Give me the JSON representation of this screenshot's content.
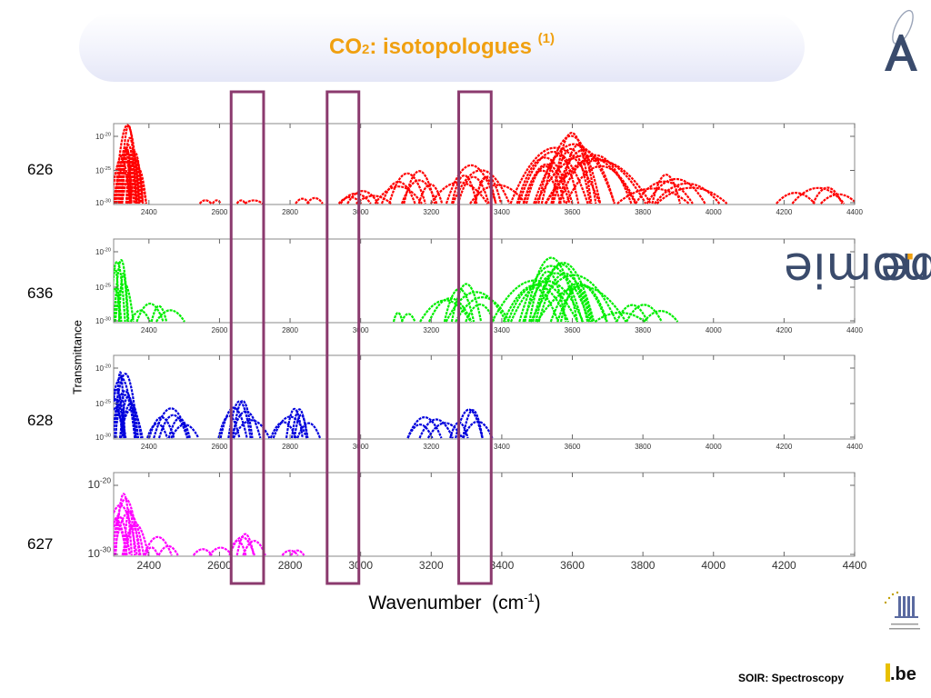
{
  "slide": {
    "title_main": "CO",
    "title_sub": "2",
    "title_rest": ": isotopologues ",
    "title_sup": "(1)",
    "footer": "SOIR: Spectroscopy",
    "brand_word": "aeronomie",
    "brand_dot": ".",
    "brand_tld": "be",
    "be_logo_text": ".be",
    "fed_logo_icon": "federal-science-policy-icon",
    "colors": {
      "title": "#f0a010",
      "title_box": "#e5e7f7",
      "highlight_box": "#8b3a6e",
      "brand_text": "#3a4b6c"
    }
  },
  "chart_data": {
    "type": "line",
    "xlabel": "Wavenumber  (cm",
    "xlabel_sup": "-1",
    "xlabel_close": ")",
    "ylabel": "Transmittance",
    "xlim": [
      2300,
      4400
    ],
    "x_ticks": [
      2400,
      2600,
      2800,
      3000,
      3200,
      3400,
      3600,
      3800,
      4000,
      4200,
      4400
    ],
    "highlight_ranges": [
      [
        2633,
        2725
      ],
      [
        2905,
        2995
      ],
      [
        3278,
        3370
      ]
    ],
    "panels": [
      {
        "name": "626",
        "color": "#ff0000",
        "y_ticks": [
          {
            "base": "10",
            "exp": "-20"
          },
          {
            "base": "10",
            "exp": "-25"
          },
          {
            "base": "10",
            "exp": "-30"
          }
        ],
        "bands": [
          {
            "center": 2345,
            "halfwidth": 45,
            "peak": 1.0,
            "count": 16
          },
          {
            "center": 2575,
            "halfwidth": 35,
            "peak": 0.1,
            "count": 2
          },
          {
            "center": 2680,
            "halfwidth": 40,
            "peak": 0.06,
            "count": 2
          },
          {
            "center": 2850,
            "halfwidth": 45,
            "peak": 0.15,
            "count": 2
          },
          {
            "center": 3000,
            "halfwidth": 65,
            "peak": 0.2,
            "count": 4
          },
          {
            "center": 3150,
            "halfwidth": 110,
            "peak": 0.45,
            "count": 6
          },
          {
            "center": 3330,
            "halfwidth": 110,
            "peak": 0.55,
            "count": 8
          },
          {
            "center": 3600,
            "halfwidth": 190,
            "peak": 0.92,
            "count": 18
          },
          {
            "center": 3880,
            "halfwidth": 135,
            "peak": 0.4,
            "count": 6
          },
          {
            "center": 4300,
            "halfwidth": 120,
            "peak": 0.3,
            "count": 4
          }
        ]
      },
      {
        "name": "636",
        "color": "#00ee00",
        "y_ticks": [
          {
            "base": "10",
            "exp": "-20"
          },
          {
            "base": "10",
            "exp": "-25"
          },
          {
            "base": "10",
            "exp": "-30"
          }
        ],
        "bands": [
          {
            "center": 2315,
            "halfwidth": 35,
            "peak": 0.95,
            "count": 6
          },
          {
            "center": 2420,
            "halfwidth": 80,
            "peak": 0.3,
            "count": 4
          },
          {
            "center": 3120,
            "halfwidth": 40,
            "peak": 0.25,
            "count": 2
          },
          {
            "center": 3300,
            "halfwidth": 110,
            "peak": 0.5,
            "count": 7
          },
          {
            "center": 3560,
            "halfwidth": 160,
            "peak": 0.82,
            "count": 16
          },
          {
            "center": 3790,
            "halfwidth": 130,
            "peak": 0.28,
            "count": 4
          }
        ]
      },
      {
        "name": "628",
        "color": "#0000dd",
        "y_ticks": [
          {
            "base": "10",
            "exp": "-20"
          },
          {
            "base": "10",
            "exp": "-25"
          },
          {
            "base": "10",
            "exp": "-30"
          }
        ],
        "bands": [
          {
            "center": 2325,
            "halfwidth": 50,
            "peak": 0.85,
            "count": 12
          },
          {
            "center": 2470,
            "halfwidth": 90,
            "peak": 0.4,
            "count": 6
          },
          {
            "center": 2660,
            "halfwidth": 70,
            "peak": 0.52,
            "count": 6
          },
          {
            "center": 2815,
            "halfwidth": 75,
            "peak": 0.45,
            "count": 6
          },
          {
            "center": 3200,
            "halfwidth": 70,
            "peak": 0.35,
            "count": 4
          },
          {
            "center": 3310,
            "halfwidth": 60,
            "peak": 0.42,
            "count": 4
          }
        ]
      },
      {
        "name": "627",
        "color": "#ff00ff",
        "y_ticks": [
          {
            "base": "10",
            "exp": "-20"
          },
          {
            "base": "10",
            "exp": "-30"
          }
        ],
        "bands": [
          {
            "center": 2335,
            "halfwidth": 60,
            "peak": 0.78,
            "count": 10
          },
          {
            "center": 2430,
            "halfwidth": 70,
            "peak": 0.25,
            "count": 3
          },
          {
            "center": 2580,
            "halfwidth": 50,
            "peak": 0.2,
            "count": 2
          },
          {
            "center": 2670,
            "halfwidth": 55,
            "peak": 0.35,
            "count": 4
          },
          {
            "center": 2810,
            "halfwidth": 30,
            "peak": 0.15,
            "count": 2
          }
        ]
      }
    ]
  }
}
